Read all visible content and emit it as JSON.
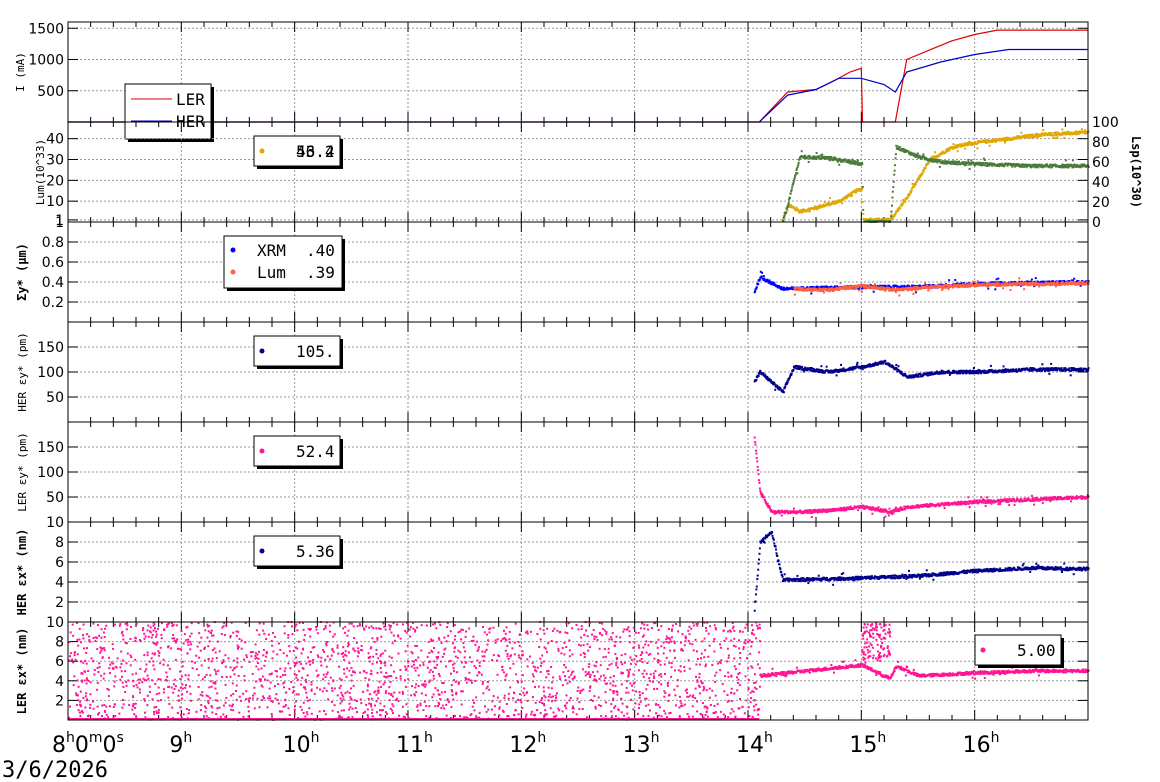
{
  "chart_data": {
    "type": "line",
    "date": "3/6/2026",
    "x_ticks": [
      {
        "label": "8",
        "sup": "h",
        "rest": "0",
        "rest_sup": "m",
        "rest2": "0",
        "rest2_sup": "s",
        "hour": 8
      },
      {
        "label": "9",
        "sup": "h",
        "hour": 9
      },
      {
        "label": "10",
        "sup": "h",
        "hour": 10
      },
      {
        "label": "11",
        "sup": "h",
        "hour": 11
      },
      {
        "label": "12",
        "sup": "h",
        "hour": 12
      },
      {
        "label": "13",
        "sup": "h",
        "hour": 13
      },
      {
        "label": "14",
        "sup": "h",
        "hour": 14
      },
      {
        "label": "15",
        "sup": "h",
        "hour": 15
      },
      {
        "label": "16",
        "sup": "h",
        "hour": 16
      }
    ],
    "xlim": [
      8,
      17
    ],
    "panels": [
      {
        "id": "current",
        "ylabel": "I (mA)",
        "ylim": [
          0,
          1600
        ],
        "yticks": [
          500,
          1000,
          1500
        ],
        "legend": [
          {
            "name": "LER",
            "color": "#e00000"
          },
          {
            "name": "HER",
            "color": "#0000c8"
          }
        ],
        "series": [
          {
            "name": "LER",
            "color": "#e00000",
            "points": [
              [
                8,
                0
              ],
              [
                14.1,
                0
              ],
              [
                14.35,
                480
              ],
              [
                14.6,
                520
              ],
              [
                14.75,
                650
              ],
              [
                14.9,
                800
              ],
              [
                15.0,
                860
              ],
              [
                15.01,
                0
              ],
              [
                15.3,
                0
              ],
              [
                15.4,
                1000
              ],
              [
                15.6,
                1150
              ],
              [
                15.8,
                1300
              ],
              [
                16.0,
                1400
              ],
              [
                16.2,
                1470
              ],
              [
                17,
                1470
              ]
            ]
          },
          {
            "name": "HER",
            "color": "#0000c8",
            "points": [
              [
                8,
                0
              ],
              [
                14.1,
                0
              ],
              [
                14.35,
                430
              ],
              [
                14.6,
                520
              ],
              [
                14.8,
                700
              ],
              [
                15.0,
                700
              ],
              [
                15.2,
                600
              ],
              [
                15.3,
                480
              ],
              [
                15.4,
                800
              ],
              [
                15.7,
                960
              ],
              [
                16.0,
                1080
              ],
              [
                16.3,
                1160
              ],
              [
                17,
                1160
              ]
            ]
          }
        ]
      },
      {
        "id": "lum",
        "ylabel": "Lum(10^33)",
        "ylabel_right": "Lsp(10^30)",
        "ylim": [
          0,
          48
        ],
        "yticks": [
          1,
          10,
          20,
          30,
          40
        ],
        "ylim_right": [
          0,
          100
        ],
        "yticks_right": [
          0,
          20,
          40,
          60,
          80,
          100
        ],
        "legend_value": "56.2",
        "legend_value_over": "43.4",
        "legend_color": "#e0a800",
        "series": [
          {
            "name": "Lum",
            "color": "#e0a800",
            "points": [
              [
                14.3,
                1
              ],
              [
                14.35,
                8
              ],
              [
                14.45,
                5
              ],
              [
                14.6,
                7
              ],
              [
                14.8,
                10
              ],
              [
                14.95,
                15
              ],
              [
                15.0,
                16
              ],
              [
                15.01,
                1
              ],
              [
                15.25,
                1
              ],
              [
                15.4,
                12
              ],
              [
                15.6,
                30
              ],
              [
                15.8,
                36
              ],
              [
                16.0,
                38
              ],
              [
                16.3,
                40
              ],
              [
                16.6,
                42
              ],
              [
                17,
                43
              ]
            ]
          },
          {
            "name": "Lsp",
            "color": "#4a7a3a",
            "axis": "right",
            "points": [
              [
                14.3,
                0
              ],
              [
                14.35,
                20
              ],
              [
                14.45,
                65
              ],
              [
                14.7,
                64
              ],
              [
                15.0,
                58
              ],
              [
                15.01,
                0
              ],
              [
                15.25,
                0
              ],
              [
                15.3,
                75
              ],
              [
                15.5,
                65
              ],
              [
                15.7,
                60
              ],
              [
                16.0,
                58
              ],
              [
                16.5,
                56
              ],
              [
                17,
                56
              ]
            ]
          }
        ]
      },
      {
        "id": "sigma",
        "ylabel": "Σy* (µm)",
        "ylim": [
          0,
          1.0
        ],
        "yticks": [
          0.2,
          0.4,
          0.6,
          0.8,
          1
        ],
        "legend": [
          {
            "name": "XRM",
            "value": ".40",
            "color": "#0000ff"
          },
          {
            "name": "Lum",
            "value": ".39",
            "color": "#ff6040"
          }
        ],
        "series": [
          {
            "name": "XRM",
            "color": "#0000ff",
            "points": [
              [
                14.05,
                0.3
              ],
              [
                14.1,
                0.45
              ],
              [
                14.3,
                0.33
              ],
              [
                14.6,
                0.34
              ],
              [
                15.0,
                0.35
              ],
              [
                15.5,
                0.35
              ],
              [
                16.0,
                0.38
              ],
              [
                17,
                0.4
              ]
            ]
          },
          {
            "name": "Lum",
            "color": "#ff6040",
            "points": [
              [
                14.4,
                0.33
              ],
              [
                14.7,
                0.32
              ],
              [
                15.0,
                0.36
              ],
              [
                15.3,
                0.32
              ],
              [
                15.6,
                0.35
              ],
              [
                16.0,
                0.37
              ],
              [
                17,
                0.39
              ]
            ]
          }
        ]
      },
      {
        "id": "her_ey",
        "ylabel": "HER εy* (pm)",
        "ylim": [
          0,
          200
        ],
        "yticks": [
          50,
          100,
          150
        ],
        "legend_value": "105.",
        "legend_color": "#00008c",
        "series": [
          {
            "name": "HER εy*",
            "color": "#00008c",
            "points": [
              [
                14.05,
                80
              ],
              [
                14.1,
                100
              ],
              [
                14.3,
                60
              ],
              [
                14.4,
                110
              ],
              [
                14.7,
                100
              ],
              [
                15.0,
                110
              ],
              [
                15.2,
                120
              ],
              [
                15.4,
                90
              ],
              [
                15.7,
                100
              ],
              [
                16.0,
                100
              ],
              [
                16.5,
                105
              ],
              [
                17,
                105
              ]
            ]
          }
        ]
      },
      {
        "id": "ler_ey",
        "ylabel": "LER εy* (pm)",
        "ylim": [
          0,
          200
        ],
        "yticks": [
          50,
          100,
          150
        ],
        "legend_value": "52.4",
        "legend_color": "#ff1493",
        "series": [
          {
            "name": "LER εy*",
            "color": "#ff1493",
            "points": [
              [
                14.05,
                170
              ],
              [
                14.1,
                60
              ],
              [
                14.2,
                20
              ],
              [
                14.5,
                20
              ],
              [
                14.8,
                25
              ],
              [
                15.0,
                30
              ],
              [
                15.25,
                20
              ],
              [
                15.4,
                30
              ],
              [
                15.7,
                35
              ],
              [
                16.0,
                40
              ],
              [
                16.5,
                45
              ],
              [
                17,
                50
              ]
            ]
          }
        ]
      },
      {
        "id": "her_ex",
        "ylabel": "HER εx* (nm)",
        "ylim": [
          0,
          10
        ],
        "yticks": [
          2,
          4,
          6,
          8,
          10
        ],
        "legend_value": "5.36",
        "legend_color": "#00008c",
        "series": [
          {
            "name": "HER εx*",
            "color": "#00008c",
            "points": [
              [
                14.05,
                1
              ],
              [
                14.1,
                8
              ],
              [
                14.2,
                9
              ],
              [
                14.3,
                4.2
              ],
              [
                14.7,
                4.3
              ],
              [
                15.0,
                4.4
              ],
              [
                15.5,
                4.6
              ],
              [
                16.0,
                5.1
              ],
              [
                16.5,
                5.4
              ],
              [
                17,
                5.3
              ]
            ]
          }
        ]
      },
      {
        "id": "ler_ex",
        "ylabel": "LER εx* (nm)",
        "ylim": [
          0,
          10
        ],
        "yticks": [
          2,
          4,
          6,
          8,
          10
        ],
        "legend_value": "5.00",
        "legend_color": "#ff1493",
        "series": [
          {
            "name": "LER εx*",
            "color": "#ff1493",
            "points": [
              [
                14.1,
                4.5
              ],
              [
                14.5,
                5.0
              ],
              [
                15.0,
                5.6
              ],
              [
                15.25,
                4.2
              ],
              [
                15.3,
                5.5
              ],
              [
                15.5,
                4.5
              ],
              [
                16.0,
                4.8
              ],
              [
                16.5,
                5.0
              ],
              [
                17,
                5.0
              ]
            ]
          }
        ]
      }
    ]
  }
}
